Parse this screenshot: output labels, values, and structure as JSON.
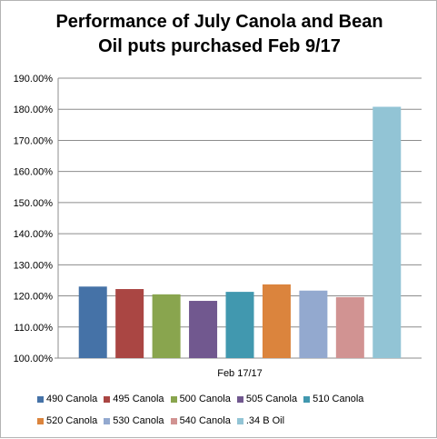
{
  "chart_data": {
    "type": "bar",
    "title_lines": [
      "Performance of July Canola and Bean",
      "Oil puts purchased Feb 9/17"
    ],
    "categories": [
      "Feb 17/17"
    ],
    "series": [
      {
        "name": "490 Canola",
        "values": [
          123.0
        ],
        "color": "#4572a7"
      },
      {
        "name": "495 Canola",
        "values": [
          122.2
        ],
        "color": "#aa4643"
      },
      {
        "name": "500 Canola",
        "values": [
          120.5
        ],
        "color": "#89a54e"
      },
      {
        "name": "505 Canola",
        "values": [
          118.4
        ],
        "color": "#71588f"
      },
      {
        "name": "510 Canola",
        "values": [
          121.3
        ],
        "color": "#4198af"
      },
      {
        "name": "520 Canola",
        "values": [
          123.7
        ],
        "color": "#db843d"
      },
      {
        "name": "530 Canola",
        "values": [
          121.7
        ],
        "color": "#93a9cf"
      },
      {
        "name": "540 Canola",
        "values": [
          119.6
        ],
        "color": "#d19392"
      },
      {
        "name": ".34 B Oil",
        "values": [
          180.8
        ],
        "color": "#92c4d5"
      }
    ],
    "xlabel": "",
    "ylabel": "",
    "ylim": [
      100,
      190
    ],
    "yticks": [
      "100.00%",
      "110.00%",
      "120.00%",
      "130.00%",
      "140.00%",
      "150.00%",
      "160.00%",
      "170.00%",
      "180.00%",
      "190.00%"
    ],
    "grid": true,
    "legend_position": "bottom"
  }
}
